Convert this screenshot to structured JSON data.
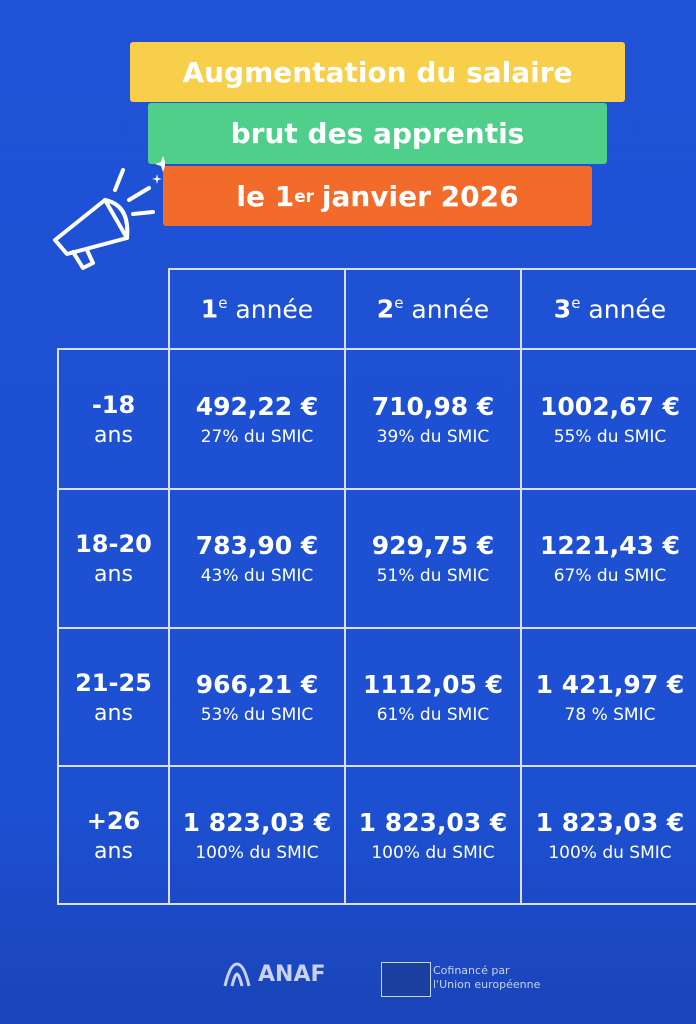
{
  "title": {
    "line1": "Augmentation du salaire",
    "line2": "brut des apprentis",
    "line3": {
      "before": "le 1",
      "sup": "er",
      "after": "janvier 2026"
    }
  },
  "table": {
    "headers": [
      {
        "num": "1",
        "sup": "e",
        "label": "année"
      },
      {
        "num": "2",
        "sup": "e",
        "label": "année"
      },
      {
        "num": "3",
        "sup": "e",
        "label": "année"
      }
    ],
    "rows": [
      {
        "age": "-18",
        "unit": "ans",
        "cells": [
          {
            "amount": "492,22 €",
            "percent": "27% du SMIC"
          },
          {
            "amount": "710,98 €",
            "percent": "39% du SMIC"
          },
          {
            "amount": "1002,67 €",
            "percent": "55% du SMIC"
          }
        ]
      },
      {
        "age": "18-20",
        "unit": "ans",
        "cells": [
          {
            "amount": "783,90 €",
            "percent": "43% du SMIC"
          },
          {
            "amount": "929,75 €",
            "percent": "51% du SMIC"
          },
          {
            "amount": "1221,43 €",
            "percent": "67% du SMIC"
          }
        ]
      },
      {
        "age": "21-25",
        "unit": "ans",
        "cells": [
          {
            "amount": "966,21 €",
            "percent": "53% du SMIC"
          },
          {
            "amount": "1112,05 €",
            "percent": "61% du SMIC"
          },
          {
            "amount": "1 421,97 €",
            "percent": "78 % SMIC"
          }
        ]
      },
      {
        "age": "+26",
        "unit": "ans",
        "cells": [
          {
            "amount": "1 823,03 €",
            "percent": "100% du SMIC"
          },
          {
            "amount": "1 823,03 €",
            "percent": "100% du SMIC"
          },
          {
            "amount": "1 823,03 €",
            "percent": "100% du SMIC"
          }
        ]
      }
    ]
  },
  "footer": {
    "logo": "ANAF",
    "eu_line1": "Cofinancé par",
    "eu_line2": "l'Union européenne"
  }
}
